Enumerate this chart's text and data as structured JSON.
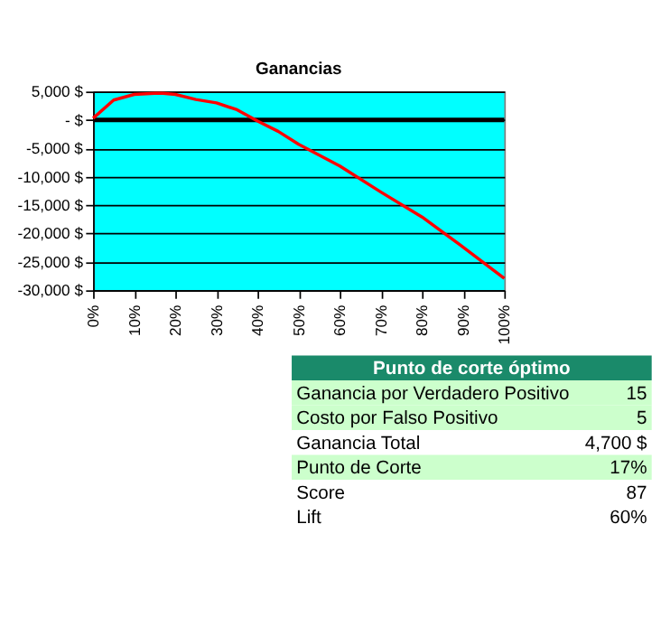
{
  "chart_data": [
    {
      "type": "line",
      "title": "Ganancias",
      "x": [
        0,
        5,
        10,
        15,
        17,
        20,
        25,
        30,
        35,
        40,
        45,
        50,
        60,
        70,
        80,
        90,
        100
      ],
      "series": [
        {
          "color": "#ff0000",
          "values": [
            300,
            3500,
            4500,
            4700,
            4700,
            4500,
            3600,
            3000,
            1800,
            -200,
            -2000,
            -4300,
            -8100,
            -12700,
            -17100,
            -22400,
            -27900
          ]
        }
      ],
      "xlim": [
        0,
        100
      ],
      "xticks": [
        {
          "value": 0,
          "label": "0%"
        },
        {
          "value": 10,
          "label": "10%"
        },
        {
          "value": 20,
          "label": "20%"
        },
        {
          "value": 30,
          "label": "30%"
        },
        {
          "value": 40,
          "label": "40%"
        },
        {
          "value": 50,
          "label": "50%"
        },
        {
          "value": 60,
          "label": "60%"
        },
        {
          "value": 70,
          "label": "70%"
        },
        {
          "value": 80,
          "label": "80%"
        },
        {
          "value": 90,
          "label": "90%"
        },
        {
          "value": 100,
          "label": "100%"
        }
      ],
      "ylim": [
        -30000,
        5000
      ],
      "yticks": [
        {
          "value": 5000,
          "label": "5,000 $"
        },
        {
          "value": 0,
          "label": "- $"
        },
        {
          "value": -5000,
          "label": "-5,000 $"
        },
        {
          "value": -10000,
          "label": "-10,000 $"
        },
        {
          "value": -15000,
          "label": "-15,000 $"
        },
        {
          "value": -20000,
          "label": "-20,000 $"
        },
        {
          "value": -25000,
          "label": "-25,000 $"
        },
        {
          "value": -30000,
          "label": "-30,000 $"
        }
      ],
      "ref_lines": [
        {
          "axis": "y",
          "value": 0,
          "color": "#000000"
        }
      ],
      "grid": "y",
      "marker": "none",
      "line_style": "solid"
    },
    {
      "type": "other",
      "title": "Punto de corte óptimo",
      "annotations": [
        "Ganancia por Verdadero Positivo",
        "15",
        "Costo por Falso Positivo",
        "5",
        "Ganancia Total",
        "4,700 $",
        "Punto de Corte",
        "17%",
        "Score",
        "87",
        "Lift",
        "60%"
      ]
    }
  ]
}
